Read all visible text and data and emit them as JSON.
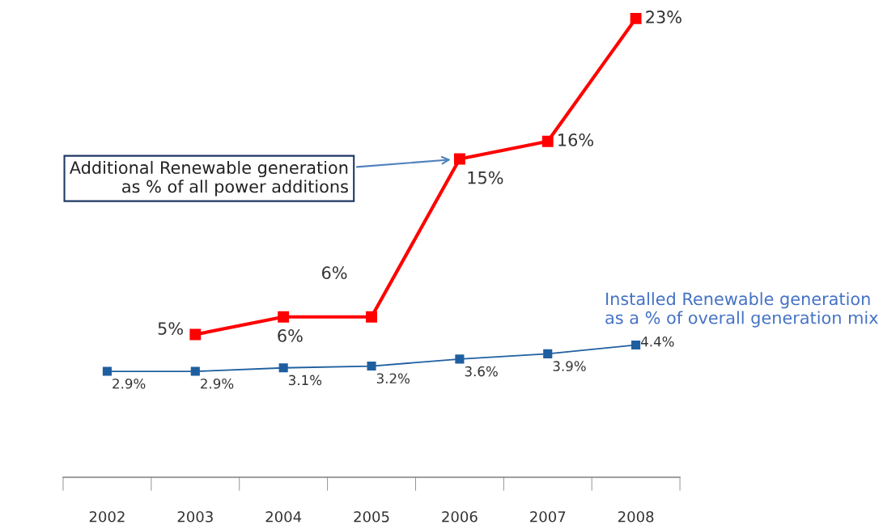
{
  "chart_data": {
    "type": "line",
    "categories": [
      "2002",
      "2003",
      "2004",
      "2005",
      "2006",
      "2007",
      "2008"
    ],
    "series": [
      {
        "name": "Additional Renewable generation as % of all power additions",
        "color": "#ff0000",
        "values": [
          null,
          5,
          6,
          6,
          15,
          16,
          23
        ],
        "value_labels": [
          null,
          "5%",
          "6%",
          "6%",
          "15%",
          "16%",
          "23%"
        ]
      },
      {
        "name": "Installed Renewable generation as a % of overall generation mix",
        "color": "#1f5fa0",
        "values": [
          2.9,
          2.9,
          3.1,
          3.2,
          3.6,
          3.9,
          4.4
        ],
        "value_labels": [
          "2.9%",
          "2.9%",
          "3.1%",
          "3.2%",
          "3.6%",
          "3.9%",
          "4.4%"
        ]
      }
    ],
    "tick_labels": "x",
    "marker": "square",
    "grid": false
  }
}
